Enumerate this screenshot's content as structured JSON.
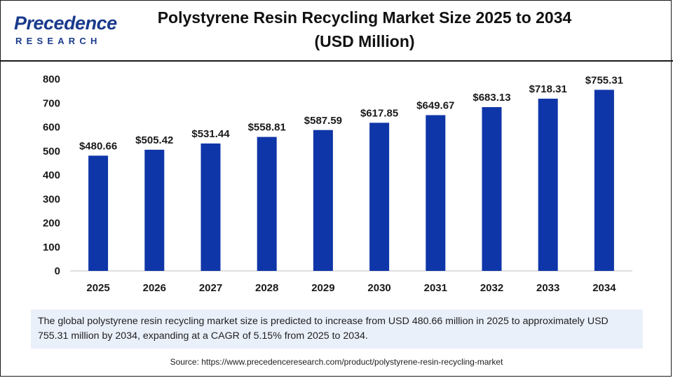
{
  "brand": {
    "name": "Precedence",
    "sub": "RESEARCH",
    "color": "#1a3a8c"
  },
  "title": "Polystyrene Resin Recycling Market  Size 2025 to 2034\n(USD Million)",
  "chart_data": {
    "type": "bar",
    "categories": [
      "2025",
      "2026",
      "2027",
      "2028",
      "2029",
      "2030",
      "2031",
      "2032",
      "2033",
      "2034"
    ],
    "values": [
      480.66,
      505.42,
      531.44,
      558.81,
      587.59,
      617.85,
      649.67,
      683.13,
      718.31,
      755.31
    ],
    "data_labels": [
      "$480.66",
      "$505.42",
      "$531.44",
      "$558.81",
      "$587.59",
      "$617.85",
      "$649.67",
      "$683.13",
      "$718.31",
      "$755.31"
    ],
    "y_ticks": [
      "0",
      "100",
      "200",
      "300",
      "400",
      "500",
      "600",
      "700",
      "800"
    ],
    "ylim": [
      0,
      800
    ],
    "bar_color": "#0f36a8",
    "grid": false,
    "title": "",
    "xlabel": "",
    "ylabel": ""
  },
  "summary": "The global polystyrene resin recycling market size is predicted to increase from USD 480.66 million in 2025 to approximately USD 755.31 million by 2034, expanding at a CAGR of 5.15% from 2025 to 2034.",
  "source": "Source: https://www.precedenceresearch.com/product/polystyrene-resin-recycling-market"
}
